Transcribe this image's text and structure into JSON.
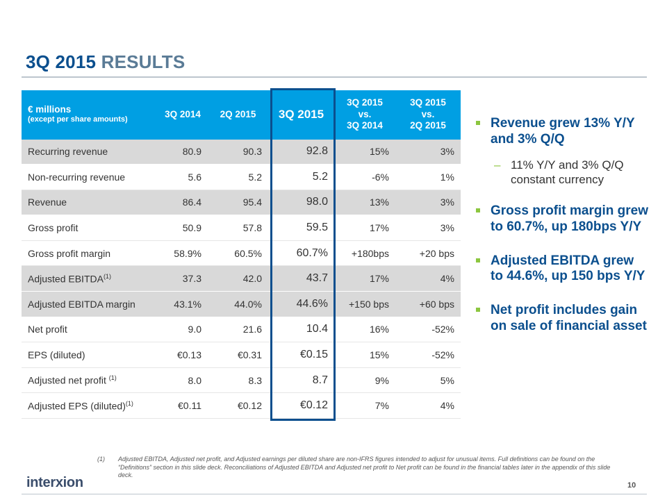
{
  "title": {
    "part1": "3Q 2015",
    "part2": "RESULTS"
  },
  "table": {
    "header": {
      "units": "€ millions",
      "units_sub": "(except per share amounts)",
      "col1": "3Q 2014",
      "col2": "2Q 2015",
      "col3": "3Q 2015",
      "col4": [
        "3Q 2015",
        "vs.",
        "3Q 2014"
      ],
      "col5": [
        "3Q 2015",
        "vs.",
        "2Q 2015"
      ]
    },
    "rows": [
      {
        "label": "Recurring revenue",
        "sup": "",
        "v1": "80.9",
        "v2": "90.3",
        "v3": "92.8",
        "v4": "15%",
        "v5": "3%"
      },
      {
        "label": "Non-recurring revenue",
        "sup": "",
        "v1": "5.6",
        "v2": "5.2",
        "v3": "5.2",
        "v4": "-6%",
        "v5": "1%"
      },
      {
        "label": "Revenue",
        "sup": "",
        "v1": "86.4",
        "v2": "95.4",
        "v3": "98.0",
        "v4": "13%",
        "v5": "3%"
      },
      {
        "label": "Gross profit",
        "sup": "",
        "v1": "50.9",
        "v2": "57.8",
        "v3": "59.5",
        "v4": "17%",
        "v5": "3%"
      },
      {
        "label": "Gross profit margin",
        "sup": "",
        "v1": "58.9%",
        "v2": "60.5%",
        "v3": "60.7%",
        "v4": "+180bps",
        "v5": "+20 bps"
      },
      {
        "label": "Adjusted EBITDA",
        "sup": "(1)",
        "v1": "37.3",
        "v2": "42.0",
        "v3": "43.7",
        "v4": "17%",
        "v5": "4%"
      },
      {
        "label": "Adjusted EBITDA margin",
        "sup": "",
        "v1": "43.1%",
        "v2": "44.0%",
        "v3": "44.6%",
        "v4": "+150 bps",
        "v5": "+60 bps"
      },
      {
        "label": "Net profit",
        "sup": "",
        "v1": "9.0",
        "v2": "21.6",
        "v3": "10.4",
        "v4": "16%",
        "v5": "-52%"
      },
      {
        "label": "EPS (diluted)",
        "sup": "",
        "v1": "€0.13",
        "v2": "€0.31",
        "v3": "€0.15",
        "v4": "15%",
        "v5": "-52%"
      },
      {
        "label": "Adjusted net profit ",
        "sup": "(1)",
        "v1": "8.0",
        "v2": "8.3",
        "v3": "8.7",
        "v4": "9%",
        "v5": "5%"
      },
      {
        "label": "Adjusted EPS (diluted)",
        "sup": "(1)",
        "v1": "€0.11",
        "v2": "€0.12",
        "v3": "€0.12",
        "v4": "7%",
        "v5": "4%"
      }
    ]
  },
  "bullets": {
    "b1": "Revenue grew 13% Y/Y and 3% Q/Q",
    "b1_sub": "11% Y/Y and 3% Q/Q constant currency",
    "b2": "Gross profit margin grew to 60.7%, up 180bps Y/Y",
    "b3": "Adjusted EBITDA grew to 44.6%, up 150 bps Y/Y",
    "b4": "Net profit includes gain on sale of financial asset"
  },
  "footnote": {
    "num": "(1)",
    "text": "Adjusted EBITDA, Adjusted net profit, and Adjusted earnings per diluted share are non-IFRS figures intended to adjust for unusual items.  Full definitions can be found on the “Definitions” section in this slide deck.  Reconciliations of Adjusted EBITDA and Adjusted net profit to Net profit can be found in the financial tables later in the appendix of this slide deck."
  },
  "logo": "interxion",
  "page_number": "10",
  "colors": {
    "title_blue": "#0b4f8e",
    "header_cyan": "#009fe3",
    "bullet_green": "#8cc63f",
    "row_shade": "#d9d9d9"
  }
}
